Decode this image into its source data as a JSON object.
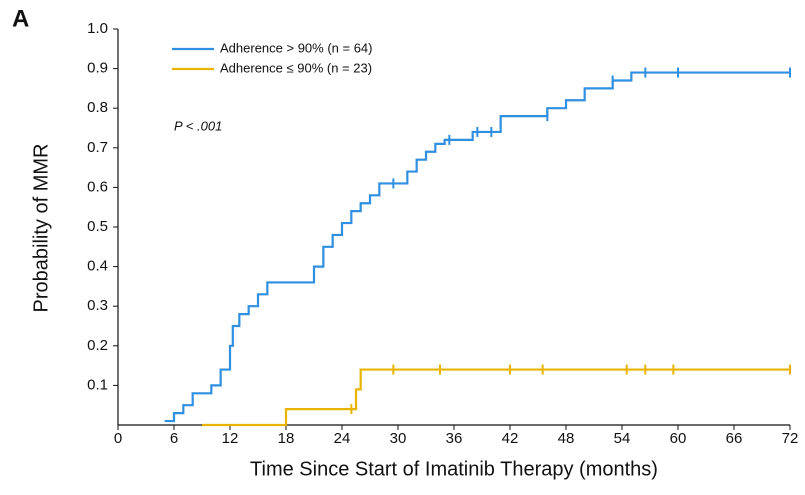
{
  "chart_data": {
    "type": "step",
    "panel_label": "A",
    "annotation": "P < .001",
    "xlabel": "Time Since Start of Imatinib Therapy (months)",
    "ylabel": "Probability of MMR",
    "xlim": [
      0,
      72
    ],
    "ylim": [
      0,
      1
    ],
    "xticks": [
      0,
      6,
      12,
      18,
      24,
      30,
      36,
      42,
      48,
      54,
      60,
      66,
      72
    ],
    "yticks": [
      0.1,
      0.2,
      0.3,
      0.4,
      0.5,
      0.6,
      0.7,
      0.8,
      0.9,
      {
        "value": 1,
        "label": "1.0"
      }
    ],
    "series": [
      {
        "name": "Adherence > 90% (n = 64)",
        "color": "#2f8fe0",
        "x": [
          5,
          6,
          7,
          8,
          10,
          11,
          12,
          12.3,
          13,
          14,
          15,
          16,
          21,
          22,
          23,
          24,
          25,
          26,
          27,
          28,
          31,
          32,
          33,
          34,
          35,
          38,
          41,
          46,
          48,
          50,
          53,
          55,
          72
        ],
        "values": [
          0.01,
          0.03,
          0.05,
          0.08,
          0.1,
          0.14,
          0.2,
          0.25,
          0.28,
          0.3,
          0.33,
          0.36,
          0.4,
          0.45,
          0.48,
          0.51,
          0.54,
          0.56,
          0.58,
          0.61,
          0.64,
          0.67,
          0.69,
          0.71,
          0.72,
          0.74,
          0.78,
          0.8,
          0.82,
          0.85,
          0.87,
          0.89,
          0.89
        ],
        "censor_x": [
          29.5,
          35.5,
          38.5,
          40,
          46,
          53,
          56.5,
          60,
          72
        ],
        "censor_values": [
          0.61,
          0.72,
          0.74,
          0.74,
          0.78,
          0.87,
          0.89,
          0.89,
          0.89
        ]
      },
      {
        "name": "Adherence ≤ 90% (n = 23)",
        "color": "#e8b400",
        "x": [
          9,
          18,
          25.5,
          26,
          72
        ],
        "values": [
          0,
          0.04,
          0.09,
          0.14,
          0.14
        ],
        "censor_x": [
          25,
          29.5,
          34.5,
          42,
          45.5,
          54.5,
          56.5,
          59.5,
          72
        ],
        "censor_values": [
          0.04,
          0.14,
          0.14,
          0.14,
          0.14,
          0.14,
          0.14,
          0.14,
          0.14
        ]
      }
    ]
  }
}
